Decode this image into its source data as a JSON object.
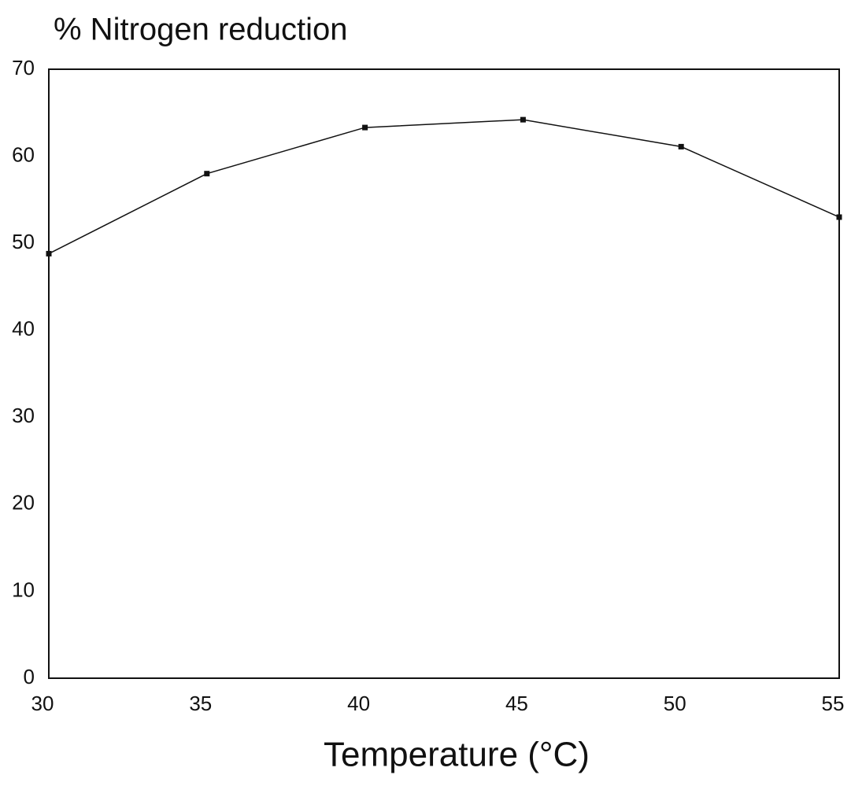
{
  "chart_data": {
    "type": "line",
    "title": "% Nitrogen reduction",
    "x_label": "Temperature (°C)",
    "x": [
      30,
      35,
      40,
      45,
      50,
      55
    ],
    "series": [
      {
        "color": "#111111",
        "values": [
          48.8,
          58,
          63.3,
          64.2,
          61.1,
          53
        ]
      }
    ],
    "xlim": [
      30,
      55
    ],
    "xticks": [
      30,
      35,
      40,
      45,
      50,
      55
    ],
    "ylim": [
      0,
      70
    ],
    "yticks": [
      0,
      10,
      20,
      30,
      40,
      50,
      60,
      70
    ],
    "grid": false
  }
}
